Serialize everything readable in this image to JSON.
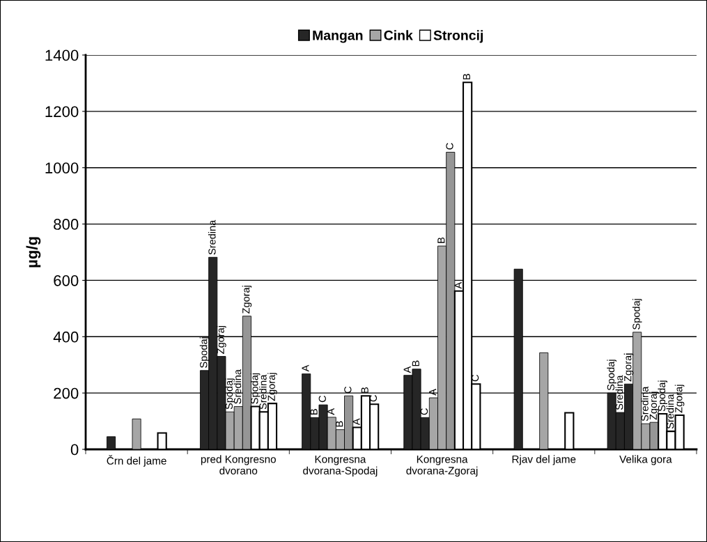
{
  "chart_data": {
    "type": "bar",
    "ylabel": "µg/g",
    "categories": [
      "Črn del jame",
      "pred Kongresno\ndvorano",
      "Kongresna\ndvorana-Spodaj",
      "Kongresna\ndvorana-Zgoraj",
      "Rjav del jame",
      "Velika gora"
    ],
    "series": [
      {
        "name": "Mangan",
        "color": "#262626",
        "values": [
          null,
          280,
          268,
          263,
          null,
          200
        ],
        "value_labels": [
          null,
          "Spodaj",
          "A",
          "A",
          null,
          "Spodaj"
        ]
      },
      {
        "color": "#262626",
        "values": [
          45,
          682,
          113,
          285,
          640,
          131
        ],
        "value_labels": [
          null,
          "Sredina",
          "B",
          "B",
          null,
          "Sredina"
        ]
      },
      {
        "color": "#262626",
        "values": [
          null,
          330,
          158,
          113,
          null,
          232
        ],
        "value_labels": [
          null,
          "Zgoraj",
          "C",
          "C",
          null,
          "Zgoraj"
        ]
      },
      {
        "name": "Cink",
        "color": "#a6a6a6",
        "values": [
          null,
          133,
          114,
          183,
          null,
          416
        ],
        "value_labels": [
          null,
          "Spodaj",
          "A",
          "A",
          null,
          "Spodaj"
        ]
      },
      {
        "color": "#a6a6a6",
        "values": [
          108,
          152,
          70,
          722,
          343,
          91
        ],
        "value_labels": [
          null,
          "Sredina",
          "B",
          "B",
          null,
          "Sredina"
        ]
      },
      {
        "color": "#969696",
        "values": [
          null,
          473,
          190,
          1055,
          null,
          96
        ],
        "value_labels": [
          null,
          "Zgoraj",
          "C",
          "C",
          null,
          "Zgoraj"
        ]
      },
      {
        "name": "Stroncij",
        "color": "#ffffff",
        "values": [
          null,
          152,
          78,
          562,
          null,
          126
        ],
        "value_labels": [
          null,
          "Spodaj",
          "A",
          "A",
          null,
          "Spodaj"
        ]
      },
      {
        "color": "#ffffff",
        "values": [
          58,
          133,
          190,
          1303,
          130,
          64
        ],
        "value_labels": [
          null,
          "Sredina",
          "B",
          "B",
          null,
          "Sredina"
        ]
      },
      {
        "color": "#ffffff",
        "values": [
          null,
          163,
          160,
          232,
          null,
          121
        ],
        "value_labels": [
          null,
          "Zgoraj",
          "C",
          "C",
          null,
          "Zgoraj"
        ]
      }
    ],
    "ylim": [
      0,
      1400
    ],
    "yticks": [
      0,
      200,
      400,
      600,
      800,
      1000,
      1200,
      1400
    ],
    "grid": "y",
    "legend": "top"
  }
}
